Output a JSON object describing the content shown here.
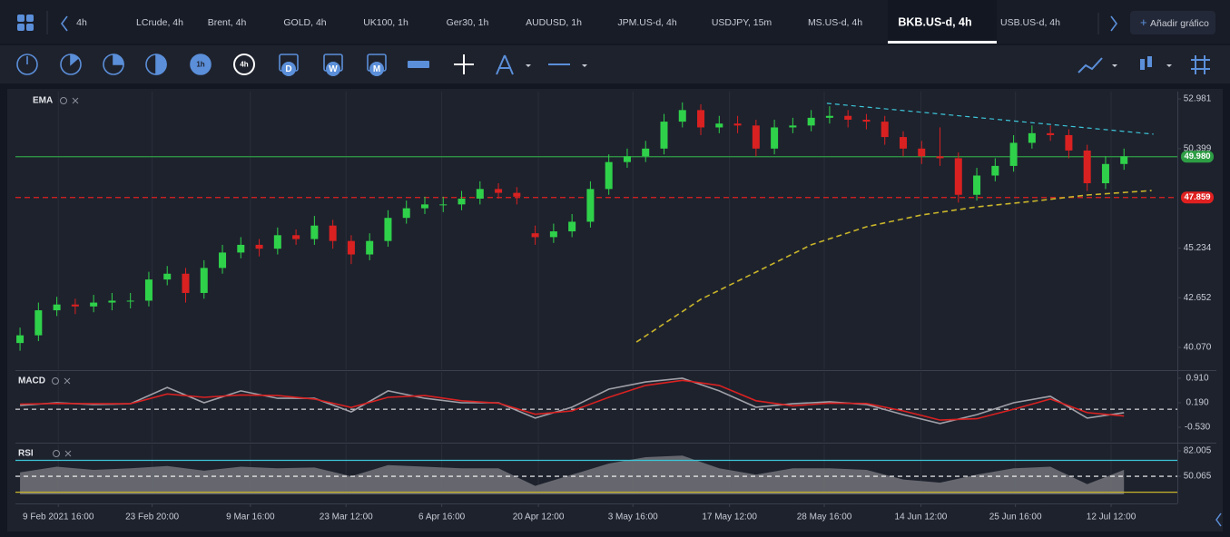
{
  "toolbar": {
    "tabs": [
      "4h",
      "LCrude, 4h",
      "Brent, 4h",
      "GOLD, 4h",
      "UK100, 1h",
      "Ger30, 1h",
      "AUDUSD, 1h",
      "JPM.US-d, 4h",
      "USDJPY, 15m",
      "MS.US-d, 4h",
      "BKB.US-d, 4h",
      "USB.US-d, 4h"
    ],
    "active_tab": 10,
    "add_chart": "Añadir gráfico",
    "timeframes": [
      "1h",
      "4h",
      "D",
      "W",
      "M"
    ]
  },
  "chart_data": [
    {
      "type": "candlestick",
      "title": "EMA",
      "xlim": [
        -0.25,
        62.9
      ],
      "xticks": [
        {
          "value": 2.08,
          "label": "9 Feb 2021 16:00"
        },
        {
          "value": 7.18,
          "label": "23 Feb 20:00"
        },
        {
          "value": 12.52,
          "label": "9 Mar 16:00"
        },
        {
          "value": 17.72,
          "label": "23 Mar 12:00"
        },
        {
          "value": 22.92,
          "label": "6 Apr 16:00"
        },
        {
          "value": 28.17,
          "label": "20 Apr 12:00"
        },
        {
          "value": 33.31,
          "label": "3 May 16:00"
        },
        {
          "value": 38.56,
          "label": "17 May 12:00"
        },
        {
          "value": 43.71,
          "label": "28 May 16:00"
        },
        {
          "value": 48.96,
          "label": "14 Jun 12:00"
        },
        {
          "value": 54.1,
          "label": "25 Jun 16:00"
        },
        {
          "value": 59.3,
          "label": "12 Jul 12:00"
        }
      ],
      "ylim": [
        38.94,
        53.36
      ],
      "yticks": [
        52.981,
        50.399,
        45.234,
        42.652,
        {
          "value": 40.07,
          "label": "40.070"
        }
      ],
      "up_color": "#2fd14a",
      "down_color": "#d92121",
      "open": [
        40.3,
        40.7,
        42.0,
        42.3,
        42.2,
        42.4,
        42.5,
        42.5,
        43.6,
        43.9,
        42.9,
        44.2,
        45.0,
        45.4,
        45.2,
        45.9,
        45.7,
        46.4,
        45.6,
        44.9,
        45.6,
        46.8,
        47.3,
        47.5,
        47.5,
        47.8,
        48.3,
        48.1,
        46.0,
        45.8,
        46.1,
        46.6,
        48.3,
        49.7,
        50.0,
        50.4,
        51.8,
        52.4,
        51.5,
        51.7,
        51.6,
        50.4,
        51.5,
        51.6,
        52.0,
        52.1,
        51.9,
        51.8,
        51.0,
        50.4,
        50.0,
        49.9,
        48.0,
        49.0,
        49.5,
        50.7,
        51.2,
        51.1,
        50.3,
        48.6,
        49.6
      ],
      "high": [
        41.1,
        42.4,
        42.7,
        42.6,
        42.8,
        42.9,
        42.9,
        44.0,
        44.3,
        44.2,
        44.6,
        45.4,
        45.8,
        45.7,
        46.3,
        46.2,
        46.9,
        46.7,
        45.9,
        46.0,
        47.2,
        47.7,
        47.9,
        47.9,
        48.2,
        48.7,
        48.6,
        48.4,
        46.4,
        46.5,
        47.0,
        48.7,
        50.1,
        50.4,
        50.8,
        52.2,
        52.8,
        52.7,
        52.1,
        52.1,
        51.9,
        51.9,
        52.0,
        52.4,
        52.6,
        52.4,
        52.2,
        52.1,
        51.3,
        50.8,
        51.5,
        50.2,
        49.4,
        49.9,
        51.1,
        51.6,
        51.6,
        51.4,
        50.6,
        50.0,
        50.4
      ],
      "low": [
        39.9,
        40.4,
        41.7,
        41.8,
        41.9,
        42.0,
        42.1,
        42.2,
        43.3,
        42.4,
        42.6,
        43.9,
        44.7,
        44.8,
        44.9,
        45.4,
        45.4,
        45.2,
        44.4,
        44.6,
        45.3,
        46.5,
        47.0,
        47.1,
        47.2,
        47.5,
        47.8,
        47.5,
        45.4,
        45.5,
        45.8,
        46.3,
        48.0,
        49.4,
        49.7,
        50.1,
        51.5,
        51.1,
        51.2,
        51.2,
        50.0,
        50.1,
        51.2,
        51.3,
        51.7,
        51.5,
        51.4,
        50.6,
        50.0,
        49.6,
        49.5,
        47.6,
        47.7,
        48.7,
        49.2,
        50.4,
        50.8,
        49.9,
        48.2,
        48.3,
        49.3
      ],
      "close": [
        40.7,
        42.0,
        42.3,
        42.2,
        42.4,
        42.5,
        42.5,
        43.6,
        43.9,
        42.9,
        44.2,
        45.0,
        45.4,
        45.2,
        45.9,
        45.7,
        46.4,
        45.6,
        44.9,
        45.6,
        46.8,
        47.3,
        47.5,
        47.5,
        47.8,
        48.3,
        48.1,
        47.9,
        45.8,
        46.1,
        46.6,
        48.3,
        49.7,
        50.0,
        50.4,
        51.8,
        52.4,
        51.5,
        51.7,
        51.6,
        50.4,
        51.5,
        51.6,
        52.0,
        52.1,
        51.9,
        51.8,
        51.0,
        50.4,
        50.0,
        49.9,
        48.0,
        49.0,
        49.5,
        50.7,
        51.2,
        51.1,
        50.3,
        48.6,
        49.6,
        50.0
      ],
      "ema": {
        "color": "#c9b52a",
        "x": [
          33.5,
          37,
          40,
          43,
          46,
          49,
          52,
          55,
          58,
          61.5
        ],
        "values": [
          40.35,
          42.57,
          43.98,
          45.4,
          46.34,
          46.95,
          47.37,
          47.66,
          47.99,
          48.22
        ]
      },
      "trendline": {
        "color": "#3cc6d8",
        "x": [
          43.85,
          61.6
        ],
        "values": [
          52.75,
          51.15
        ]
      },
      "price_lines": [
        {
          "value": 49.98,
          "label": "49.980",
          "color": "#2e9e45",
          "dashed": false
        },
        {
          "value": 47.859,
          "color": "#e02020",
          "dashed": true
        }
      ]
    },
    {
      "type": "line",
      "title": "MACD",
      "xlim": [
        -0.25,
        62.9
      ],
      "ylim": [
        -0.957,
        1.097
      ],
      "yticks": [
        {
          "value": 0.91,
          "label": "0.910"
        },
        {
          "value": 0.19,
          "label": "0.190"
        },
        {
          "value": -0.53,
          "label": "-0.530"
        }
      ],
      "baseline": 0,
      "x": [
        0,
        2,
        4,
        6,
        8,
        10,
        12,
        14,
        16,
        18,
        20,
        22,
        24,
        26,
        28,
        30,
        32,
        34,
        36,
        38,
        40,
        42,
        44,
        46,
        48,
        50,
        52,
        54,
        56,
        58,
        60
      ],
      "series": [
        {
          "color": "#a0a0a8",
          "values": [
            0.11,
            0.19,
            0.14,
            0.16,
            0.64,
            0.19,
            0.54,
            0.32,
            0.32,
            -0.08,
            0.54,
            0.32,
            0.19,
            0.19,
            -0.26,
            0.06,
            0.59,
            0.8,
            0.91,
            0.54,
            0.06,
            0.16,
            0.22,
            0.14,
            -0.16,
            -0.42,
            -0.16,
            0.19,
            0.38,
            -0.26,
            -0.1
          ]
        },
        {
          "color": "#d92121",
          "values": [
            0.15,
            0.17,
            0.16,
            0.16,
            0.45,
            0.35,
            0.42,
            0.4,
            0.3,
            0.05,
            0.35,
            0.4,
            0.25,
            0.18,
            -0.15,
            -0.05,
            0.35,
            0.7,
            0.85,
            0.7,
            0.25,
            0.1,
            0.18,
            0.17,
            -0.05,
            -0.32,
            -0.28,
            0.0,
            0.3,
            -0.1,
            -0.2
          ]
        }
      ]
    },
    {
      "type": "area",
      "title": "RSI",
      "xlim": [
        -0.25,
        62.9
      ],
      "ylim": [
        27.25,
        89.99
      ],
      "yticks": [
        82.005,
        50.065
      ],
      "levels": [
        70,
        50,
        30
      ],
      "level_colors": [
        "#3cc6d8",
        "#ffffff",
        "#c9b52a"
      ],
      "color": "#6e6f75",
      "x": [
        0,
        2,
        4,
        6,
        8,
        10,
        12,
        14,
        16,
        18,
        20,
        22,
        24,
        26,
        28,
        30,
        32,
        34,
        36,
        38,
        40,
        42,
        44,
        46,
        48,
        50,
        52,
        54,
        56,
        58,
        60
      ],
      "values": [
        55,
        62,
        58,
        60,
        63,
        57,
        62,
        60,
        61,
        50,
        64,
        62,
        60,
        60,
        38,
        52,
        66,
        74,
        76,
        60,
        52,
        60,
        60,
        58,
        46,
        42,
        52,
        60,
        62,
        40,
        58
      ]
    }
  ]
}
